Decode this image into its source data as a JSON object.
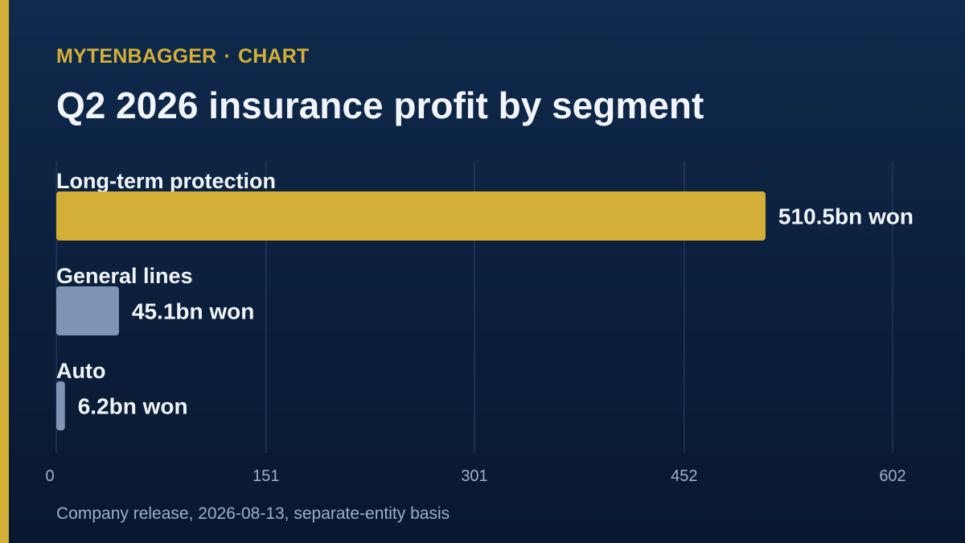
{
  "header": {
    "brand": "MYTENBAGGER",
    "separator": "·",
    "section": "CHART",
    "title": "Q2 2026 insurance profit by segment"
  },
  "footer": {
    "source": "Company release, 2026-08-13, separate-entity basis"
  },
  "colors": {
    "accent": "#d4af37",
    "secondary_bar": "#7f95b6",
    "background": "#0b1f3b",
    "gridline": "#2d4466",
    "text": "#f1f5fb",
    "muted_text": "#9db0c9"
  },
  "chart_data": {
    "type": "bar",
    "orientation": "horizontal",
    "categories": [
      "Long-term protection",
      "General lines",
      "Auto"
    ],
    "values": [
      510.5,
      45.1,
      6.2
    ],
    "value_labels": [
      "510.5bn won",
      "45.1bn won",
      "6.2bn won"
    ],
    "unit": "bn won",
    "xlim": [
      0,
      602
    ],
    "xticks": [
      0,
      151,
      301,
      452,
      602
    ],
    "xtick_labels": [
      "0",
      "151",
      "301",
      "452",
      "602"
    ],
    "grid": true,
    "legend": "none",
    "highlight_color": "#d4af37",
    "other_color": "#7f95b6"
  }
}
